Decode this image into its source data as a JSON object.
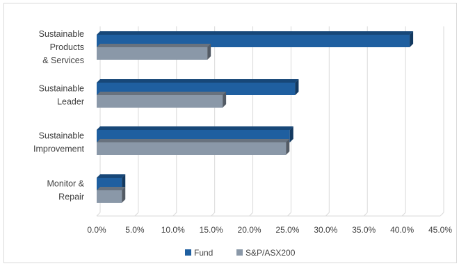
{
  "chart_data": {
    "type": "bar",
    "orientation": "horizontal",
    "style": "3d",
    "categories": [
      [
        "Sustainable",
        "Products",
        "& Services"
      ],
      [
        "Sustainable",
        "Leader"
      ],
      [
        "Sustainable",
        "Improvement"
      ],
      [
        "Monitor &",
        "Repair"
      ]
    ],
    "series": [
      {
        "name": "Fund",
        "color": "#1f5fa0",
        "values": [
          41.0,
          26.0,
          25.3,
          3.3
        ]
      },
      {
        "name": "S&P/ASX200",
        "color": "#8a98a8",
        "values": [
          14.5,
          16.5,
          24.8,
          3.3
        ]
      }
    ],
    "xlim": [
      0,
      45
    ],
    "xticks": [
      "0.0%",
      "5.0%",
      "10.0%",
      "15.0%",
      "20.0%",
      "25.0%",
      "30.0%",
      "35.0%",
      "40.0%",
      "45.0%"
    ],
    "grid": true,
    "legend_position": "bottom"
  }
}
